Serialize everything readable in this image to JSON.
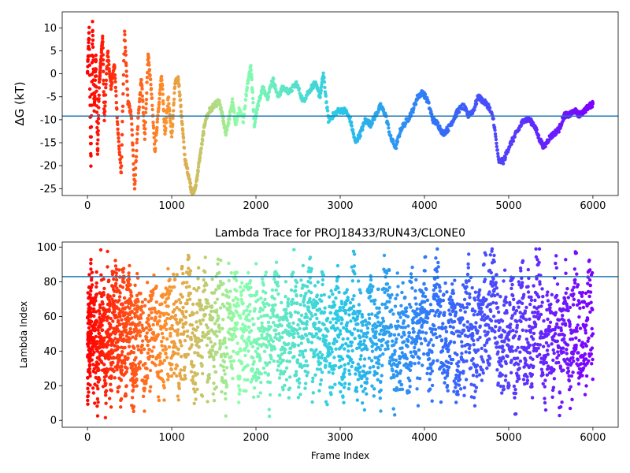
{
  "chart_data": [
    {
      "type": "scatter",
      "title": "",
      "xlabel": "",
      "ylabel": "ΔG (kT)",
      "xlim": [
        -300,
        6300
      ],
      "ylim": [
        -26.5,
        13.5
      ],
      "xticks": [
        0,
        1000,
        2000,
        3000,
        4000,
        5000,
        6000
      ],
      "yticks": [
        -25,
        -20,
        -15,
        -10,
        -5,
        0,
        5,
        10
      ],
      "hline": -9.2,
      "hline_color": "#1f77b4",
      "colormap": "rainbow (reversed over frame index: red at frame 0, violet at frame 6000)",
      "grid": false,
      "series_trace": [
        [
          0,
          0
        ],
        [
          20,
          10
        ],
        [
          40,
          -20
        ],
        [
          60,
          11
        ],
        [
          80,
          -8
        ],
        [
          100,
          4
        ],
        [
          120,
          -18
        ],
        [
          140,
          -2
        ],
        [
          160,
          3
        ],
        [
          180,
          8
        ],
        [
          200,
          -10
        ],
        [
          240,
          5
        ],
        [
          280,
          -3
        ],
        [
          320,
          2
        ],
        [
          360,
          -12
        ],
        [
          400,
          -22
        ],
        [
          440,
          9
        ],
        [
          480,
          -6
        ],
        [
          520,
          -9
        ],
        [
          560,
          -25
        ],
        [
          600,
          -10
        ],
        [
          640,
          -1
        ],
        [
          680,
          -14
        ],
        [
          720,
          4
        ],
        [
          760,
          -4
        ],
        [
          800,
          -17
        ],
        [
          840,
          -8
        ],
        [
          880,
          0
        ],
        [
          920,
          -13
        ],
        [
          960,
          -5
        ],
        [
          1000,
          -14
        ],
        [
          1040,
          -2
        ],
        [
          1080,
          -1
        ],
        [
          1120,
          -10
        ],
        [
          1160,
          -19
        ],
        [
          1200,
          -22
        ],
        [
          1240,
          -26
        ],
        [
          1280,
          -25
        ],
        [
          1320,
          -20
        ],
        [
          1360,
          -15
        ],
        [
          1400,
          -10
        ],
        [
          1450,
          -8
        ],
        [
          1500,
          -7
        ],
        [
          1560,
          -6
        ],
        [
          1600,
          -9
        ],
        [
          1640,
          -13
        ],
        [
          1680,
          -10
        ],
        [
          1720,
          -6
        ],
        [
          1760,
          -11
        ],
        [
          1800,
          -8
        ],
        [
          1850,
          -10
        ],
        [
          1900,
          -2
        ],
        [
          1940,
          2
        ],
        [
          1980,
          -11
        ],
        [
          2020,
          -7
        ],
        [
          2080,
          -3
        ],
        [
          2140,
          -5
        ],
        [
          2200,
          -1
        ],
        [
          2260,
          -5
        ],
        [
          2320,
          -3
        ],
        [
          2400,
          -4
        ],
        [
          2480,
          -2
        ],
        [
          2560,
          -6
        ],
        [
          2620,
          -4
        ],
        [
          2700,
          -2
        ],
        [
          2760,
          -5
        ],
        [
          2800,
          0
        ],
        [
          2860,
          -10
        ],
        [
          2920,
          -9
        ],
        [
          2980,
          -8
        ],
        [
          3060,
          -8
        ],
        [
          3120,
          -10
        ],
        [
          3180,
          -15
        ],
        [
          3240,
          -13
        ],
        [
          3300,
          -10
        ],
        [
          3360,
          -11
        ],
        [
          3420,
          -9
        ],
        [
          3480,
          -7
        ],
        [
          3540,
          -9
        ],
        [
          3600,
          -14
        ],
        [
          3660,
          -16
        ],
        [
          3720,
          -12
        ],
        [
          3800,
          -10
        ],
        [
          3860,
          -8
        ],
        [
          3920,
          -5
        ],
        [
          3980,
          -4
        ],
        [
          4040,
          -6
        ],
        [
          4100,
          -10
        ],
        [
          4160,
          -11
        ],
        [
          4220,
          -13
        ],
        [
          4280,
          -12
        ],
        [
          4340,
          -10
        ],
        [
          4400,
          -8
        ],
        [
          4460,
          -7
        ],
        [
          4520,
          -9
        ],
        [
          4580,
          -8
        ],
        [
          4640,
          -5
        ],
        [
          4700,
          -6
        ],
        [
          4760,
          -7
        ],
        [
          4820,
          -10
        ],
        [
          4880,
          -19
        ],
        [
          4940,
          -19
        ],
        [
          5000,
          -16
        ],
        [
          5060,
          -14
        ],
        [
          5120,
          -12
        ],
        [
          5180,
          -10
        ],
        [
          5240,
          -10
        ],
        [
          5300,
          -11
        ],
        [
          5360,
          -14
        ],
        [
          5420,
          -16
        ],
        [
          5480,
          -14
        ],
        [
          5540,
          -13
        ],
        [
          5600,
          -12
        ],
        [
          5660,
          -9
        ],
        [
          5720,
          -9
        ],
        [
          5780,
          -8
        ],
        [
          5840,
          -9
        ],
        [
          5900,
          -8
        ],
        [
          5960,
          -7
        ],
        [
          6000,
          -6.5
        ]
      ]
    },
    {
      "type": "scatter",
      "title": "Lambda Trace for PROJ18433/RUN43/CLONE0",
      "xlabel": "Frame Index",
      "ylabel": "Lambda Index",
      "xlim": [
        -300,
        6300
      ],
      "ylim": [
        -4,
        103
      ],
      "xticks": [
        0,
        1000,
        2000,
        3000,
        4000,
        5000,
        6000
      ],
      "yticks": [
        0,
        20,
        40,
        60,
        80,
        100
      ],
      "hline": 83,
      "hline_color": "#1f77b4",
      "colormap": "rainbow (reversed over frame index: red at frame 0, violet at frame 6000)",
      "grid": false,
      "series_trace": [
        [
          0,
          5
        ],
        [
          10,
          40
        ],
        [
          20,
          80
        ],
        [
          30,
          15
        ],
        [
          40,
          95
        ],
        [
          60,
          60
        ],
        [
          80,
          25
        ],
        [
          100,
          70
        ],
        [
          120,
          10
        ],
        [
          140,
          50
        ],
        [
          160,
          90
        ],
        [
          180,
          30
        ],
        [
          200,
          65
        ],
        [
          220,
          5
        ],
        [
          240,
          85
        ],
        [
          260,
          45
        ],
        [
          280,
          20
        ],
        [
          300,
          75
        ],
        [
          320,
          55
        ],
        [
          340,
          98
        ],
        [
          360,
          35
        ],
        [
          380,
          60
        ],
        [
          400,
          12
        ],
        [
          420,
          80
        ],
        [
          440,
          50
        ],
        [
          460,
          25
        ],
        [
          480,
          70
        ],
        [
          500,
          95
        ],
        [
          520,
          40
        ],
        [
          540,
          8
        ],
        [
          560,
          60
        ],
        [
          580,
          30
        ],
        [
          600,
          85
        ],
        [
          640,
          50
        ],
        [
          680,
          20
        ],
        [
          720,
          70
        ],
        [
          760,
          40
        ],
        [
          800,
          95
        ],
        [
          840,
          10
        ],
        [
          880,
          55
        ],
        [
          920,
          30
        ],
        [
          960,
          75
        ],
        [
          1000,
          45
        ],
        [
          1040,
          90
        ],
        [
          1080,
          15
        ],
        [
          1120,
          65
        ],
        [
          1160,
          35
        ],
        [
          1200,
          98
        ],
        [
          1240,
          50
        ],
        [
          1280,
          20
        ],
        [
          1320,
          70
        ],
        [
          1360,
          40
        ],
        [
          1400,
          85
        ],
        [
          1440,
          10
        ],
        [
          1480,
          60
        ],
        [
          1520,
          30
        ],
        [
          1560,
          95
        ],
        [
          1600,
          45
        ],
        [
          1640,
          20
        ],
        [
          1680,
          75
        ],
        [
          1720,
          55
        ],
        [
          1760,
          90
        ],
        [
          1800,
          25
        ],
        [
          1840,
          65
        ],
        [
          1880,
          40
        ],
        [
          1920,
          98
        ],
        [
          1960,
          15
        ],
        [
          2000,
          60
        ],
        [
          2040,
          35
        ],
        [
          2080,
          80
        ],
        [
          2120,
          50
        ],
        [
          2160,
          20
        ],
        [
          2200,
          70
        ],
        [
          2240,
          95
        ],
        [
          2280,
          40
        ],
        [
          2320,
          10
        ],
        [
          2360,
          60
        ],
        [
          2400,
          30
        ],
        [
          2440,
          85
        ],
        [
          2480,
          50
        ],
        [
          2520,
          20
        ],
        [
          2560,
          75
        ],
        [
          2600,
          45
        ],
        [
          2640,
          95
        ],
        [
          2680,
          15
        ],
        [
          2720,
          65
        ],
        [
          2760,
          35
        ],
        [
          2800,
          80
        ],
        [
          2840,
          5
        ],
        [
          2880,
          55
        ],
        [
          2920,
          30
        ],
        [
          2960,
          90
        ],
        [
          3000,
          45
        ],
        [
          3040,
          15
        ],
        [
          3080,
          70
        ],
        [
          3120,
          40
        ],
        [
          3160,
          98
        ],
        [
          3200,
          25
        ],
        [
          3240,
          60
        ],
        [
          3280,
          10
        ],
        [
          3320,
          50
        ],
        [
          3360,
          80
        ],
        [
          3400,
          35
        ],
        [
          3440,
          65
        ],
        [
          3480,
          20
        ],
        [
          3520,
          90
        ],
        [
          3560,
          95
        ],
        [
          3600,
          40
        ],
        [
          3640,
          5
        ],
        [
          3680,
          55
        ],
        [
          3720,
          30
        ],
        [
          3760,
          75
        ],
        [
          3800,
          15
        ],
        [
          3840,
          50
        ],
        [
          3880,
          85
        ],
        [
          3920,
          25
        ],
        [
          3960,
          60
        ],
        [
          4000,
          95
        ],
        [
          4040,
          40
        ],
        [
          4080,
          10
        ],
        [
          4120,
          70
        ],
        [
          4160,
          98
        ],
        [
          4200,
          30
        ],
        [
          4240,
          55
        ],
        [
          4280,
          20
        ],
        [
          4320,
          80
        ],
        [
          4360,
          45
        ],
        [
          4400,
          5
        ],
        [
          4440,
          65
        ],
        [
          4480,
          30
        ],
        [
          4520,
          90
        ],
        [
          4560,
          50
        ],
        [
          4600,
          15
        ],
        [
          4640,
          70
        ],
        [
          4680,
          35
        ],
        [
          4720,
          95
        ],
        [
          4760,
          55
        ],
        [
          4800,
          90
        ],
        [
          4840,
          98
        ],
        [
          4880,
          45
        ],
        [
          4920,
          20
        ],
        [
          4960,
          60
        ],
        [
          5000,
          30
        ],
        [
          5040,
          75
        ],
        [
          5080,
          10
        ],
        [
          5120,
          50
        ],
        [
          5160,
          85
        ],
        [
          5200,
          35
        ],
        [
          5240,
          65
        ],
        [
          5280,
          20
        ],
        [
          5320,
          90
        ],
        [
          5360,
          95
        ],
        [
          5400,
          45
        ],
        [
          5440,
          15
        ],
        [
          5480,
          60
        ],
        [
          5520,
          30
        ],
        [
          5560,
          80
        ],
        [
          5600,
          5
        ],
        [
          5640,
          40
        ],
        [
          5680,
          70
        ],
        [
          5720,
          20
        ],
        [
          5760,
          50
        ],
        [
          5800,
          98
        ],
        [
          5840,
          25
        ],
        [
          5880,
          60
        ],
        [
          5920,
          35
        ],
        [
          5960,
          80
        ],
        [
          6000,
          50
        ]
      ]
    }
  ]
}
